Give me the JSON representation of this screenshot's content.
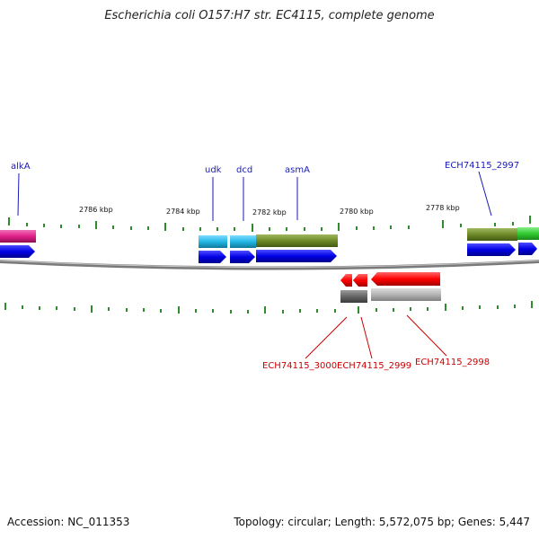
{
  "title": "Escherichia coli O157:H7 str. EC4115, complete genome",
  "footer": {
    "accession": "Accession: NC_011353",
    "summary": "Topology: circular; Length: 5,572,075 bp; Genes: 5,447"
  },
  "axis": {
    "ticks": [
      "2786 kbp",
      "2784 kbp",
      "2782 kbp",
      "2780 kbp",
      "2778 kbp"
    ]
  },
  "genes_top": [
    {
      "label": "alkA",
      "color": "#1a1ab8"
    },
    {
      "label": "udk",
      "color": "#1a1ab8"
    },
    {
      "label": "dcd",
      "color": "#1a1ab8"
    },
    {
      "label": "asmA",
      "color": "#1a1ab8"
    },
    {
      "label": "ECH74115_2997",
      "color": "#1a1ab8"
    }
  ],
  "genes_bottom": [
    {
      "label": "ECH74115_3000",
      "color": "#cc0000"
    },
    {
      "label": "ECH74115_2999",
      "color": "#cc0000"
    },
    {
      "label": "ECH74115_2998",
      "color": "#cc0000"
    }
  ],
  "colors": {
    "forward_gene": "#0000e6",
    "reverse_gene": "#ff0000",
    "magenta_feature": "#e0208a",
    "cyan_feature": "#22b8e6",
    "olive_feature": "#6e8a28",
    "green_feature": "#33cc33",
    "gray_dark": "#666666",
    "gray_light": "#b3b3b3",
    "backbone": "#7a7a7a",
    "tick": "#2e8b2e"
  }
}
